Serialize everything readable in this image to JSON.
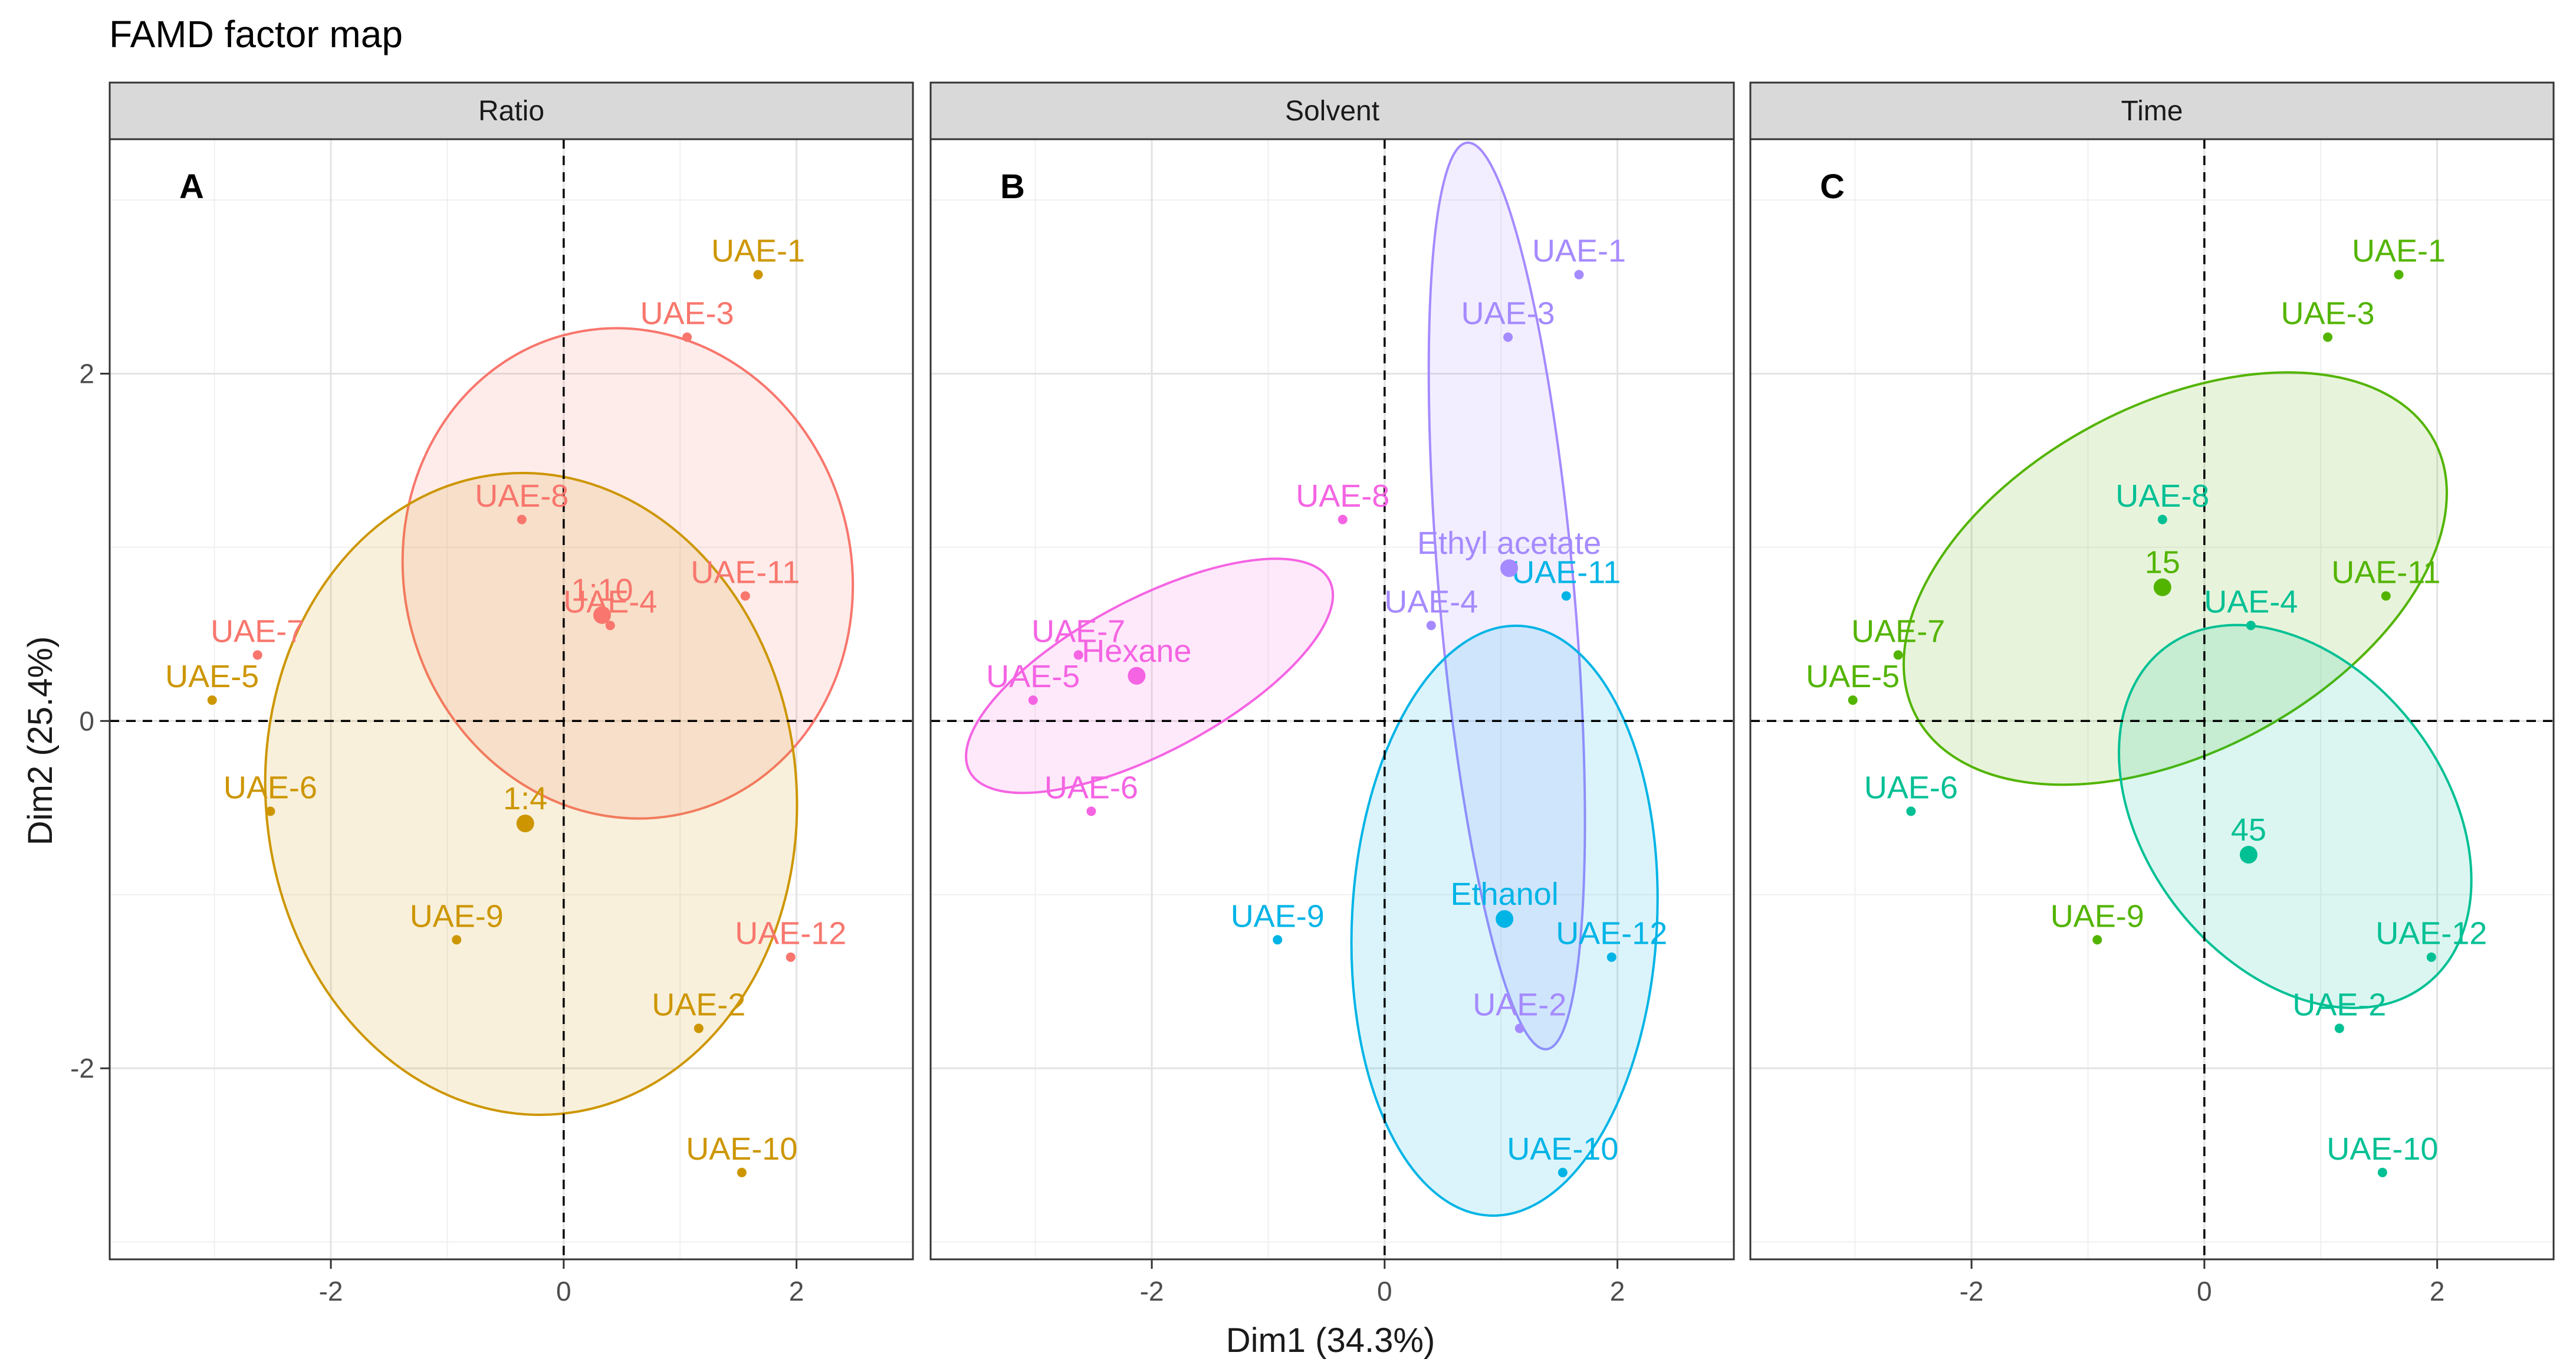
{
  "chart_data": {
    "type": "scatter",
    "title": "FAMD factor map",
    "xlabel": "Dim1 (34.3%)",
    "ylabel": "Dim2 (25.4%)",
    "xlim": [
      -3.9,
      3.0
    ],
    "ylim": [
      -3.1,
      3.35
    ],
    "x_ticks": [
      -2,
      0,
      2
    ],
    "x_tick_labels": [
      "-2",
      "0",
      "2"
    ],
    "y_ticks": [
      -2,
      0,
      2
    ],
    "y_tick_labels": [
      "-2",
      "0",
      "2"
    ],
    "grid": true,
    "legend": "none",
    "samples": [
      {
        "name": "UAE-1",
        "x": 1.67,
        "y": 2.57
      },
      {
        "name": "UAE-2",
        "x": 1.16,
        "y": -1.77
      },
      {
        "name": "UAE-3",
        "x": 1.06,
        "y": 2.21
      },
      {
        "name": "UAE-4",
        "x": 0.4,
        "y": 0.55
      },
      {
        "name": "UAE-5",
        "x": -3.02,
        "y": 0.12
      },
      {
        "name": "UAE-6",
        "x": -2.52,
        "y": -0.52
      },
      {
        "name": "UAE-7",
        "x": -2.63,
        "y": 0.38
      },
      {
        "name": "UAE-8",
        "x": -0.36,
        "y": 1.16
      },
      {
        "name": "UAE-9",
        "x": -0.92,
        "y": -1.26
      },
      {
        "name": "UAE-10",
        "x": 1.53,
        "y": -2.6
      },
      {
        "name": "UAE-11",
        "x": 1.56,
        "y": 0.72
      },
      {
        "name": "UAE-12",
        "x": 1.95,
        "y": -1.36
      }
    ],
    "panels": [
      {
        "id": "A",
        "strip": "Ratio",
        "levels": [
          {
            "name": "1:10",
            "color": "#F8766D",
            "centroid": [
              0.33,
              0.61
            ],
            "members": [
              "UAE-3",
              "UAE-4",
              "UAE-7",
              "UAE-8",
              "UAE-11",
              "UAE-12"
            ],
            "ellipse": {
              "cx": 0.55,
              "cy": 0.85,
              "rx": 1.92,
              "ry": 1.42,
              "angle": 15
            }
          },
          {
            "name": "1:4",
            "color": "#CD9600",
            "centroid": [
              -0.33,
              -0.59
            ],
            "members": [
              "UAE-1",
              "UAE-2",
              "UAE-5",
              "UAE-6",
              "UAE-9",
              "UAE-10"
            ],
            "ellipse": {
              "cx": -0.28,
              "cy": -0.42,
              "rx": 2.28,
              "ry": 1.85,
              "angle": 5
            }
          }
        ]
      },
      {
        "id": "B",
        "strip": "Solvent",
        "levels": [
          {
            "name": "Ethyl acetate",
            "color": "#A58AFF",
            "centroid": [
              1.07,
              0.88
            ],
            "members": [
              "UAE-1",
              "UAE-2",
              "UAE-3",
              "UAE-4"
            ],
            "ellipse": {
              "cx": 1.05,
              "cy": 0.72,
              "rx": 0.58,
              "ry": 2.62,
              "angle": 5
            }
          },
          {
            "name": "Ethanol",
            "color": "#00B4E6",
            "centroid": [
              1.03,
              -1.14
            ],
            "members": [
              "UAE-9",
              "UAE-10",
              "UAE-11",
              "UAE-12"
            ],
            "ellipse": {
              "cx": 1.03,
              "cy": -1.15,
              "rx": 1.31,
              "ry": 1.7,
              "angle": -3
            }
          },
          {
            "name": "Hexane",
            "color": "#F564E3",
            "centroid": [
              -2.13,
              0.26
            ],
            "members": [
              "UAE-5",
              "UAE-6",
              "UAE-7",
              "UAE-8"
            ],
            "ellipse": {
              "cx": -2.02,
              "cy": 0.26,
              "rx": 1.75,
              "ry": 0.44,
              "angle": 28
            }
          }
        ]
      },
      {
        "id": "C",
        "strip": "Time",
        "levels": [
          {
            "name": "15",
            "color": "#53B400",
            "centroid": [
              -0.36,
              0.77
            ],
            "members": [
              "UAE-1",
              "UAE-3",
              "UAE-5",
              "UAE-7",
              "UAE-9",
              "UAE-11"
            ],
            "ellipse": {
              "cx": -0.25,
              "cy": 0.82,
              "rx": 2.52,
              "ry": 1.0,
              "angle": 28
            }
          },
          {
            "name": "45",
            "color": "#00C094",
            "centroid": [
              0.38,
              -0.77
            ],
            "members": [
              "UAE-2",
              "UAE-4",
              "UAE-6",
              "UAE-8",
              "UAE-10",
              "UAE-12"
            ],
            "ellipse": {
              "cx": 0.78,
              "cy": -0.55,
              "rx": 1.83,
              "ry": 0.86,
              "angle": -52
            }
          }
        ]
      }
    ]
  }
}
